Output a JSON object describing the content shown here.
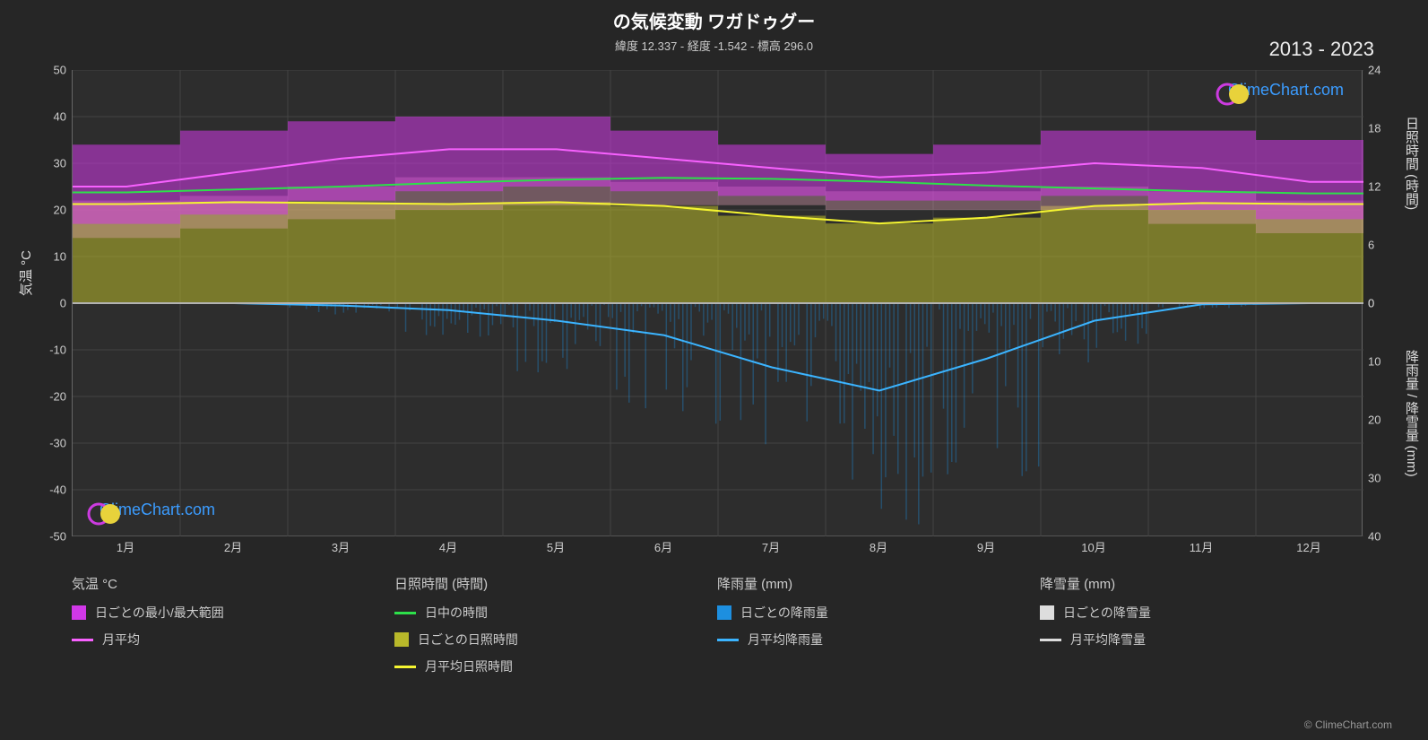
{
  "title": "の気候変動 ワガドゥグー",
  "subtitle": "緯度 12.337 - 経度 -1.542 - 標高 296.0",
  "year_range": "2013 - 2023",
  "credit": "© ClimeChart.com",
  "watermark_text": "ClimeChart.com",
  "watermark_color": "#3b9cff",
  "logo_colors": {
    "ring": "#cc3be0",
    "disc": "#e8d23b"
  },
  "background_color": "#262626",
  "plot_background": "#2d2d2d",
  "grid_color": "#444444",
  "text_color": "#cccccc",
  "axes": {
    "x": {
      "categories": [
        "1月",
        "2月",
        "3月",
        "4月",
        "5月",
        "6月",
        "7月",
        "8月",
        "9月",
        "10月",
        "11月",
        "12月"
      ]
    },
    "y_left": {
      "title": "気温 °C",
      "min": -50,
      "max": 50,
      "step": 10,
      "ticks": [
        50,
        40,
        30,
        20,
        10,
        0,
        -10,
        -20,
        -30,
        -40,
        -50
      ]
    },
    "y_right_upper": {
      "title": "日照時間 (時間)",
      "min": 0,
      "max": 24,
      "step": 6,
      "ticks": [
        24,
        18,
        12,
        6,
        0
      ],
      "zero_at_temp": 0,
      "max_at_temp": 50
    },
    "y_right_lower": {
      "title": "降雨量 / 降雪量 (mm)",
      "min": 0,
      "max": 40,
      "step": 10,
      "ticks": [
        0,
        10,
        20,
        30,
        40
      ],
      "zero_at_temp": 0,
      "max_at_temp": -50
    }
  },
  "series": {
    "temp_range_band": {
      "color": "#d138e8",
      "opacity": 0.55,
      "min": [
        17,
        19,
        22,
        24,
        25,
        24,
        23,
        22,
        22,
        23,
        20,
        18
      ],
      "max": [
        34,
        37,
        39,
        40,
        40,
        37,
        34,
        32,
        34,
        37,
        37,
        35
      ]
    },
    "temp_pink_lower_band": {
      "color": "#f0a8c0",
      "opacity": 0.35,
      "min": [
        14,
        16,
        18,
        20,
        21,
        21,
        21,
        20,
        20,
        20,
        17,
        15
      ],
      "max": [
        22,
        23,
        25,
        27,
        27,
        26,
        25,
        24,
        24,
        25,
        24,
        22
      ]
    },
    "temp_monthly_avg": {
      "type": "line",
      "color": "#f861ff",
      "width": 2,
      "values": [
        25,
        28,
        31,
        33,
        33,
        31,
        29,
        27,
        28,
        30,
        29,
        26
      ]
    },
    "daylight_hours": {
      "type": "line",
      "color": "#2de04a",
      "width": 2,
      "values_hours": [
        11.4,
        11.7,
        12.0,
        12.4,
        12.7,
        12.9,
        12.8,
        12.5,
        12.1,
        11.8,
        11.5,
        11.3
      ]
    },
    "sunshine_band": {
      "color": "#b8b82a",
      "opacity": 0.55,
      "min_hours": [
        0,
        0,
        0,
        0,
        0,
        0,
        0,
        0,
        0,
        0,
        0,
        0
      ],
      "max_hours": [
        10.2,
        10.4,
        10.3,
        10.2,
        10.4,
        10.0,
        9.0,
        8.2,
        8.8,
        10.0,
        10.3,
        10.2
      ]
    },
    "sunshine_monthly_avg": {
      "type": "line",
      "color": "#f5f531",
      "width": 2,
      "values_hours": [
        10.2,
        10.4,
        10.3,
        10.2,
        10.4,
        10.0,
        9.0,
        8.2,
        8.8,
        10.0,
        10.3,
        10.2
      ]
    },
    "rain_daily_streaks": {
      "color": "#1d8fe0",
      "opacity": 0.35,
      "max_mm": [
        0,
        0,
        2,
        6,
        12,
        22,
        32,
        38,
        30,
        12,
        1,
        0
      ]
    },
    "rain_monthly_avg": {
      "type": "line",
      "color": "#3bb4ff",
      "width": 2,
      "values_mm": [
        0,
        0,
        0.4,
        1.2,
        3.0,
        5.5,
        11.0,
        15.0,
        9.5,
        3.0,
        0.2,
        0
      ]
    },
    "snow_monthly_avg": {
      "type": "line",
      "color": "#dddddd",
      "width": 2,
      "values_mm": [
        0,
        0,
        0,
        0,
        0,
        0,
        0,
        0,
        0,
        0,
        0,
        0
      ]
    }
  },
  "legend": {
    "columns": [
      {
        "header": "気温 °C",
        "items": [
          {
            "kind": "swatch",
            "color": "#d138e8",
            "label": "日ごとの最小/最大範囲"
          },
          {
            "kind": "line",
            "color": "#f861ff",
            "label": "月平均"
          }
        ]
      },
      {
        "header": "日照時間 (時間)",
        "items": [
          {
            "kind": "line",
            "color": "#2de04a",
            "label": "日中の時間"
          },
          {
            "kind": "swatch",
            "color": "#b8b82a",
            "label": "日ごとの日照時間"
          },
          {
            "kind": "line",
            "color": "#f5f531",
            "label": "月平均日照時間"
          }
        ]
      },
      {
        "header": "降雨量 (mm)",
        "items": [
          {
            "kind": "swatch",
            "color": "#1d8fe0",
            "label": "日ごとの降雨量"
          },
          {
            "kind": "line",
            "color": "#3bb4ff",
            "label": "月平均降雨量"
          }
        ]
      },
      {
        "header": "降雪量 (mm)",
        "items": [
          {
            "kind": "swatch",
            "color": "#dddddd",
            "label": "日ごとの降雪量"
          },
          {
            "kind": "line",
            "color": "#dddddd",
            "label": "月平均降雪量"
          }
        ]
      }
    ]
  }
}
